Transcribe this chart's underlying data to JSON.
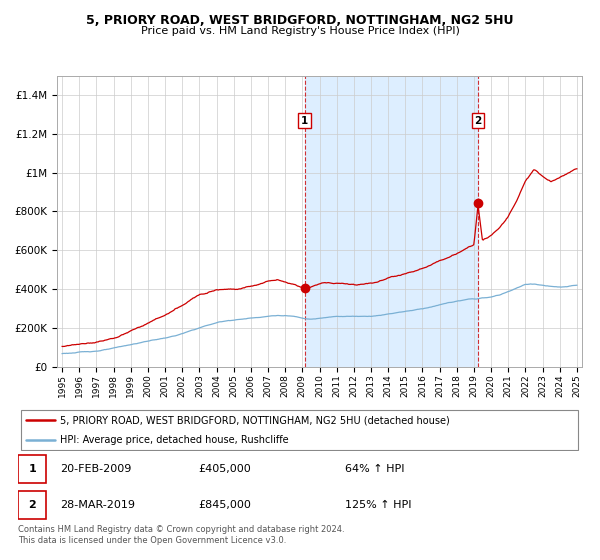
{
  "title1": "5, PRIORY ROAD, WEST BRIDGFORD, NOTTINGHAM, NG2 5HU",
  "title2": "Price paid vs. HM Land Registry's House Price Index (HPI)",
  "sale1_label": "20-FEB-2009",
  "sale1_price": 405000,
  "sale1_hpi": "64% ↑ HPI",
  "sale2_label": "28-MAR-2019",
  "sale2_price": 845000,
  "sale2_hpi": "125% ↑ HPI",
  "legend_line1": "5, PRIORY ROAD, WEST BRIDGFORD, NOTTINGHAM, NG2 5HU (detached house)",
  "legend_line2": "HPI: Average price, detached house, Rushcliffe",
  "footer": "Contains HM Land Registry data © Crown copyright and database right 2024.\nThis data is licensed under the Open Government Licence v3.0.",
  "line_color_red": "#cc0000",
  "line_color_blue": "#7ab0d4",
  "background_color": "#ffffff",
  "grid_color": "#cccccc",
  "highlight_bg": "#ddeeff",
  "ylim_max": 1500000,
  "ylim_min": 0,
  "xlim_min": 1994.7,
  "xlim_max": 2025.3,
  "sale1_x": 2009.13,
  "sale2_x": 2019.24,
  "hpi_years": [
    1995,
    1995.5,
    1996,
    1996.5,
    1997,
    1997.5,
    1998,
    1998.5,
    1999,
    1999.5,
    2000,
    2000.5,
    2001,
    2001.5,
    2002,
    2002.5,
    2003,
    2003.5,
    2004,
    2004.5,
    2005,
    2005.5,
    2006,
    2006.5,
    2007,
    2007.5,
    2008,
    2008.5,
    2009,
    2009.5,
    2010,
    2010.5,
    2011,
    2011.5,
    2012,
    2012.5,
    2013,
    2013.5,
    2014,
    2014.5,
    2015,
    2015.5,
    2016,
    2016.5,
    2017,
    2017.5,
    2018,
    2018.5,
    2019,
    2019.5,
    2020,
    2020.5,
    2021,
    2021.5,
    2022,
    2022.5,
    2023,
    2023.5,
    2024,
    2024.5,
    2025
  ],
  "hpi_vals": [
    68000,
    71000,
    74000,
    77000,
    82000,
    88000,
    94000,
    102000,
    112000,
    120000,
    130000,
    138000,
    146000,
    155000,
    167000,
    181000,
    196000,
    210000,
    222000,
    232000,
    238000,
    242000,
    248000,
    254000,
    260000,
    264000,
    262000,
    258000,
    250000,
    248000,
    252000,
    256000,
    260000,
    262000,
    262000,
    263000,
    265000,
    270000,
    278000,
    286000,
    293000,
    300000,
    308000,
    318000,
    328000,
    338000,
    346000,
    352000,
    356000,
    360000,
    365000,
    375000,
    392000,
    412000,
    428000,
    432000,
    425000,
    418000,
    412000,
    415000,
    420000
  ],
  "red_years": [
    1995,
    1995.5,
    1996,
    1996.5,
    1997,
    1997.5,
    1998,
    1998.5,
    1999,
    1999.5,
    2000,
    2000.5,
    2001,
    2001.5,
    2002,
    2002.5,
    2003,
    2003.5,
    2004,
    2004.5,
    2005,
    2005.5,
    2006,
    2006.5,
    2007,
    2007.5,
    2008,
    2008.5,
    2009,
    2009.13,
    2009.5,
    2010,
    2010.5,
    2011,
    2011.5,
    2012,
    2012.5,
    2013,
    2013.5,
    2014,
    2014.5,
    2015,
    2015.5,
    2016,
    2016.5,
    2017,
    2017.5,
    2018,
    2018.5,
    2019,
    2019.24,
    2019.5,
    2020,
    2020.5,
    2021,
    2021.5,
    2022,
    2022.5,
    2023,
    2023.5,
    2024,
    2024.5,
    2025
  ],
  "red_vals": [
    105000,
    108000,
    112000,
    118000,
    126000,
    136000,
    148000,
    162000,
    180000,
    198000,
    218000,
    236000,
    255000,
    276000,
    300000,
    326000,
    352000,
    374000,
    390000,
    398000,
    400000,
    405000,
    415000,
    428000,
    442000,
    448000,
    440000,
    428000,
    408000,
    405000,
    415000,
    428000,
    435000,
    432000,
    428000,
    426000,
    430000,
    438000,
    450000,
    465000,
    478000,
    492000,
    508000,
    522000,
    538000,
    558000,
    578000,
    598000,
    618000,
    640000,
    845000,
    660000,
    685000,
    720000,
    780000,
    860000,
    960000,
    1020000,
    980000,
    950000,
    975000,
    1000000,
    1020000
  ]
}
